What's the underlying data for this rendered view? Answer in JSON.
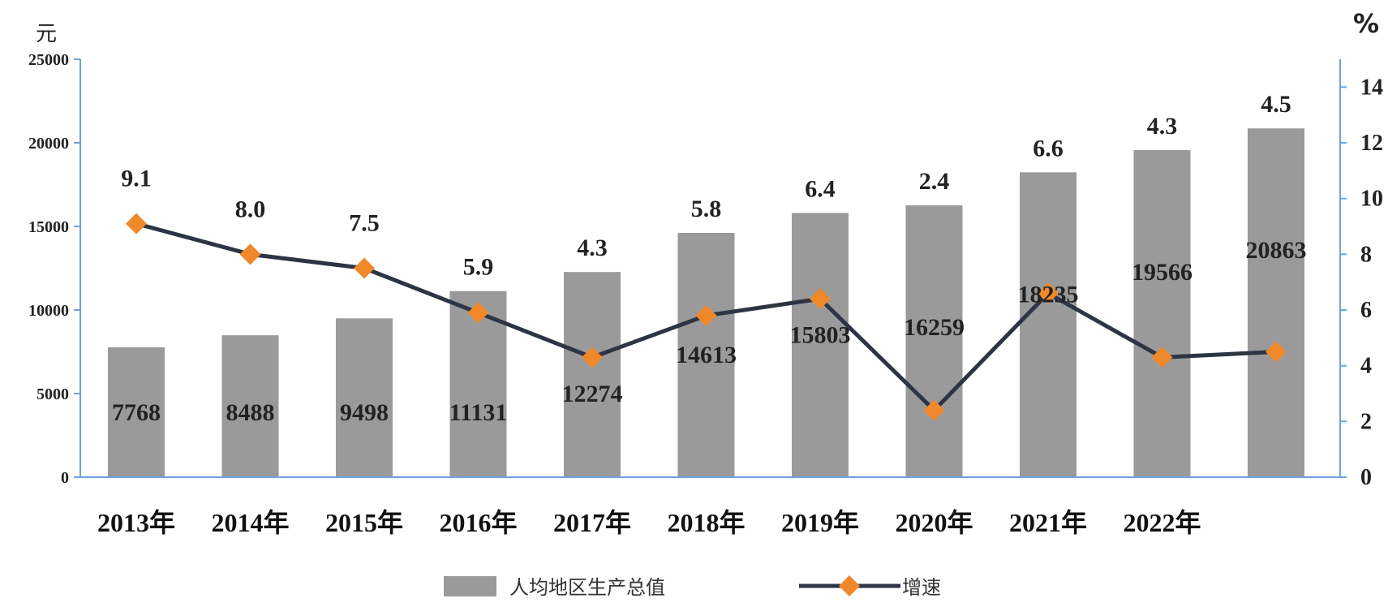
{
  "chart_data": {
    "type": "bar",
    "title": "",
    "categories": [
      "2013年",
      "2014年",
      "2015年",
      "2016年",
      "2017年",
      "2018年",
      "2019年",
      "2020年",
      "2021年",
      "2022年",
      ""
    ],
    "series": [
      {
        "name": "人均地区生产总值",
        "type": "bar",
        "axis": "left",
        "values": [
          7768,
          8488,
          9498,
          11131,
          12274,
          14613,
          15803,
          16259,
          18235,
          19566,
          20863
        ],
        "color": "#9a9a9a"
      },
      {
        "name": "增速",
        "type": "line",
        "axis": "right",
        "values": [
          9.1,
          8.0,
          7.5,
          5.9,
          4.3,
          5.8,
          6.4,
          2.4,
          6.6,
          4.3,
          4.5
        ],
        "line_color": "#2d3444",
        "marker_color": "#f0882a"
      }
    ],
    "y_left": {
      "unit": "元",
      "ylim": [
        0,
        25000
      ],
      "ticks": [
        0,
        5000,
        10000,
        15000,
        20000,
        25000
      ]
    },
    "y_right": {
      "unit": "%",
      "ylim": [
        0,
        15
      ],
      "ticks": [
        0,
        2,
        4,
        6,
        8,
        10,
        12,
        14
      ]
    },
    "grid": false,
    "legend_position": "bottom-center"
  }
}
